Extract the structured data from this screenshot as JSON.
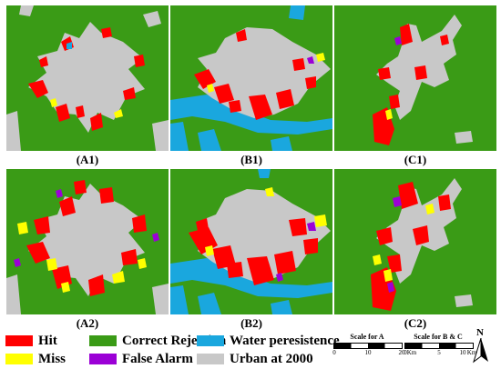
{
  "panels": [
    {
      "label": "(A1)",
      "variant": "A"
    },
    {
      "label": "(B1)",
      "variant": "B"
    },
    {
      "label": "(C1)",
      "variant": "C"
    },
    {
      "label": "(A2)",
      "variant": "A"
    },
    {
      "label": "(B2)",
      "variant": "B"
    },
    {
      "label": "(C2)",
      "variant": "C"
    }
  ],
  "legend": {
    "hit": "Hit",
    "miss": "Miss",
    "correct_rejection": "Correct Rejection",
    "false_alarm": "False Alarm",
    "water": "Water peresistence",
    "urban": "Urban at 2000"
  },
  "scale_a": {
    "title": "Scale for A",
    "ticks": [
      "0",
      "10",
      "20"
    ],
    "unit": "Km"
  },
  "scale_bc": {
    "title": "Scale for B & C",
    "ticks": [
      "0",
      "5",
      "10"
    ],
    "unit": "Km"
  },
  "north_label": "N",
  "colors": {
    "hit": "#ff0000",
    "miss": "#ffff00",
    "correct_rejection": "#3a9b16",
    "false_alarm": "#9b00d6",
    "water": "#1aa7de",
    "urban": "#c8c8c8"
  }
}
